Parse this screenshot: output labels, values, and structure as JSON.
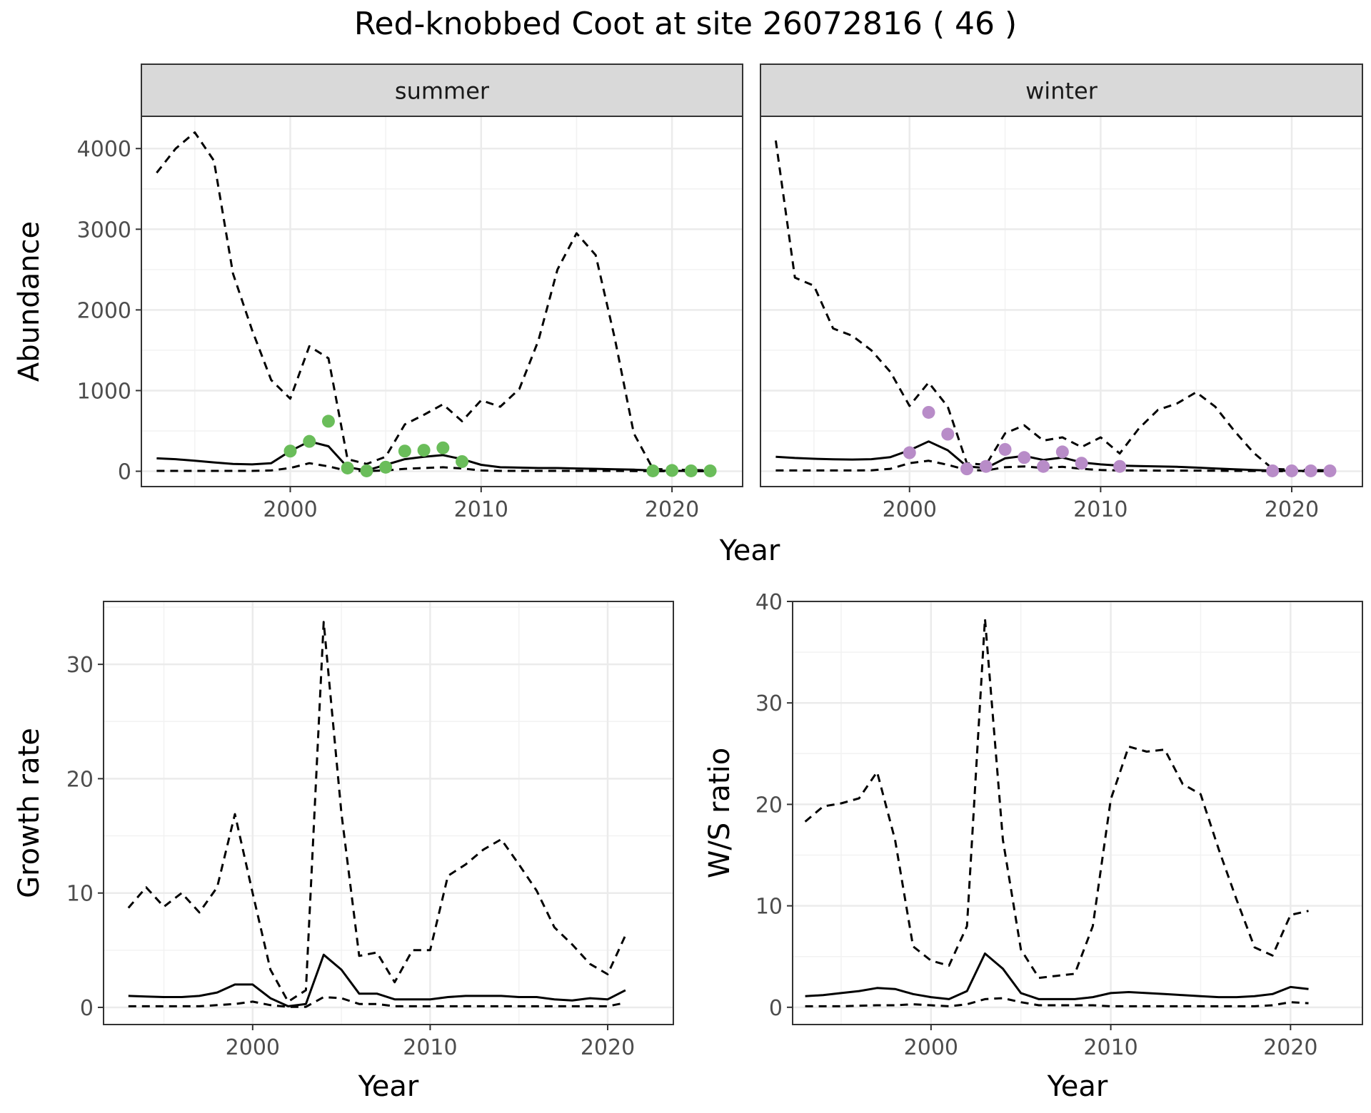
{
  "title": "Red-knobbed Coot at site 26072816 ( 46 )",
  "colors": {
    "summer_points": "#6abd5a",
    "winter_points": "#b88cc8",
    "line": "#000000",
    "strip": "#d9d9d9",
    "grid": "#ebebeb"
  },
  "chart_data": [
    {
      "type": "line",
      "panel": "summer",
      "xlabel": "Year",
      "ylabel": "Abundance",
      "xlim": [
        1992.2,
        2023.7
      ],
      "ylim": [
        -190,
        4400
      ],
      "x_ticks": [
        2000,
        2010,
        2020
      ],
      "y_ticks": [
        0,
        1000,
        2000,
        3000,
        4000
      ],
      "series": [
        {
          "style": "solid",
          "x": [
            1993,
            1994,
            1995,
            1996,
            1997,
            1998,
            1999,
            2000,
            2001,
            2002,
            2003,
            2004,
            2005,
            2006,
            2007,
            2008,
            2009,
            2010,
            2011,
            2012,
            2013,
            2014,
            2015,
            2016,
            2017,
            2018,
            2019,
            2020,
            2021,
            2022
          ],
          "y": [
            160,
            150,
            130,
            110,
            90,
            85,
            100,
            250,
            370,
            310,
            50,
            10,
            80,
            150,
            180,
            200,
            150,
            80,
            50,
            45,
            40,
            40,
            35,
            30,
            25,
            20,
            10,
            5,
            5,
            5
          ]
        },
        {
          "style": "dashed",
          "x": [
            1993,
            1994,
            1995,
            1996,
            1997,
            1998,
            1999,
            2000,
            2001,
            2002,
            2003,
            2004,
            2005,
            2006,
            2007,
            2008,
            2009,
            2010,
            2011,
            2012,
            2013,
            2014,
            2015,
            2016,
            2017,
            2018,
            2019,
            2020,
            2021,
            2022
          ],
          "y": [
            3700,
            4000,
            4200,
            3850,
            2450,
            1750,
            1130,
            900,
            1550,
            1400,
            150,
            90,
            180,
            580,
            700,
            830,
            620,
            880,
            800,
            1020,
            1620,
            2500,
            2950,
            2680,
            1650,
            470,
            30,
            20,
            15,
            10
          ]
        },
        {
          "style": "dashed",
          "x": [
            1993,
            1994,
            1995,
            1996,
            1997,
            1998,
            1999,
            2000,
            2001,
            2002,
            2003,
            2004,
            2005,
            2006,
            2007,
            2008,
            2009,
            2010,
            2011,
            2012,
            2013,
            2014,
            2015,
            2016,
            2017,
            2018,
            2019,
            2020,
            2021,
            2022
          ],
          "y": [
            5,
            5,
            5,
            5,
            5,
            5,
            10,
            40,
            100,
            60,
            5,
            2,
            10,
            30,
            40,
            50,
            35,
            10,
            5,
            5,
            5,
            5,
            5,
            5,
            5,
            3,
            2,
            1,
            1,
            1
          ]
        },
        {
          "style": "points",
          "x": [
            2000,
            2001,
            2002,
            2003,
            2004,
            2005,
            2006,
            2007,
            2008,
            2009,
            2019,
            2020,
            2021,
            2022
          ],
          "y": [
            250,
            370,
            620,
            40,
            5,
            50,
            250,
            260,
            290,
            120,
            5,
            10,
            5,
            5
          ]
        }
      ]
    },
    {
      "type": "line",
      "panel": "winter",
      "xlabel": "Year",
      "ylabel": "Abundance",
      "xlim": [
        1992.2,
        2023.7
      ],
      "ylim": [
        -190,
        4400
      ],
      "x_ticks": [
        2000,
        2010,
        2020
      ],
      "y_ticks": [
        0,
        1000,
        2000,
        3000,
        4000
      ],
      "series": [
        {
          "style": "solid",
          "x": [
            1993,
            1994,
            1995,
            1996,
            1997,
            1998,
            1999,
            2000,
            2001,
            2002,
            2003,
            2004,
            2005,
            2006,
            2007,
            2008,
            2009,
            2010,
            2011,
            2012,
            2013,
            2014,
            2015,
            2016,
            2017,
            2018,
            2019,
            2020,
            2021,
            2022
          ],
          "y": [
            180,
            165,
            155,
            148,
            145,
            150,
            175,
            260,
            370,
            260,
            60,
            40,
            160,
            190,
            140,
            170,
            110,
            85,
            70,
            65,
            60,
            55,
            45,
            35,
            25,
            15,
            8,
            5,
            5,
            5
          ]
        },
        {
          "style": "dashed",
          "x": [
            1993,
            1994,
            1995,
            1996,
            1997,
            1998,
            1999,
            2000,
            2001,
            2002,
            2003,
            2004,
            2005,
            2006,
            2007,
            2008,
            2009,
            2010,
            2011,
            2012,
            2013,
            2014,
            2015,
            2016,
            2017,
            2018,
            2019,
            2020,
            2021,
            2022
          ],
          "y": [
            4100,
            2400,
            2300,
            1770,
            1680,
            1500,
            1230,
            810,
            1100,
            800,
            100,
            80,
            470,
            570,
            380,
            420,
            300,
            420,
            220,
            530,
            760,
            840,
            980,
            800,
            500,
            230,
            30,
            20,
            15,
            10
          ]
        },
        {
          "style": "dashed",
          "x": [
            1993,
            1994,
            1995,
            1996,
            1997,
            1998,
            1999,
            2000,
            2001,
            2002,
            2003,
            2004,
            2005,
            2006,
            2007,
            2008,
            2009,
            2010,
            2011,
            2012,
            2013,
            2014,
            2015,
            2016,
            2017,
            2018,
            2019,
            2020,
            2021,
            2022
          ],
          "y": [
            10,
            10,
            10,
            10,
            10,
            12,
            30,
            100,
            130,
            80,
            15,
            10,
            50,
            60,
            40,
            55,
            30,
            15,
            10,
            10,
            8,
            8,
            8,
            6,
            5,
            4,
            2,
            1,
            1,
            1
          ]
        },
        {
          "style": "points",
          "x": [
            2000,
            2001,
            2002,
            2003,
            2004,
            2005,
            2006,
            2007,
            2008,
            2009,
            2011,
            2019,
            2020,
            2021,
            2022
          ],
          "y": [
            230,
            730,
            460,
            30,
            60,
            270,
            170,
            60,
            240,
            100,
            60,
            5,
            5,
            5,
            5
          ]
        }
      ]
    },
    {
      "type": "line",
      "panel": "growth",
      "xlabel": "Year",
      "ylabel": "Growth rate",
      "xlim": [
        1991.6,
        2023.7
      ],
      "ylim": [
        -1.5,
        35.5
      ],
      "x_ticks": [
        2000,
        2010,
        2020
      ],
      "y_ticks": [
        0,
        10,
        20,
        30
      ],
      "series": [
        {
          "style": "solid",
          "x": [
            1993,
            1994,
            1995,
            1996,
            1997,
            1998,
            1999,
            2000,
            2001,
            2002,
            2003,
            2004,
            2005,
            2006,
            2007,
            2008,
            2009,
            2010,
            2011,
            2012,
            2013,
            2014,
            2015,
            2016,
            2017,
            2018,
            2019,
            2020,
            2021
          ],
          "y": [
            1.0,
            0.95,
            0.9,
            0.9,
            1.0,
            1.3,
            2.0,
            2.0,
            0.8,
            0.1,
            0.3,
            4.6,
            3.3,
            1.2,
            1.2,
            0.7,
            0.7,
            0.7,
            0.9,
            1.0,
            1.0,
            1.0,
            0.9,
            0.9,
            0.7,
            0.6,
            0.8,
            0.7,
            1.5
          ]
        },
        {
          "style": "dashed",
          "x": [
            1993,
            1994,
            1995,
            1996,
            1997,
            1998,
            1999,
            2000,
            2001,
            2002,
            2003,
            2004,
            2005,
            2006,
            2007,
            2008,
            2009,
            2010,
            2011,
            2012,
            2013,
            2014,
            2015,
            2016,
            2017,
            2018,
            2019,
            2020,
            2021
          ],
          "y": [
            8.7,
            10.5,
            8.8,
            10.0,
            8.3,
            10.5,
            16.9,
            10.0,
            3.3,
            0.5,
            1.5,
            33.7,
            17.0,
            4.5,
            4.8,
            2.2,
            5.0,
            5.0,
            11.5,
            12.5,
            13.8,
            14.7,
            12.5,
            10.2,
            7.0,
            5.5,
            3.8,
            2.9,
            6.3
          ]
        },
        {
          "style": "dashed",
          "x": [
            1993,
            1994,
            1995,
            1996,
            1997,
            1998,
            1999,
            2000,
            2001,
            2002,
            2003,
            2004,
            2005,
            2006,
            2007,
            2008,
            2009,
            2010,
            2011,
            2012,
            2013,
            2014,
            2015,
            2016,
            2017,
            2018,
            2019,
            2020,
            2021
          ],
          "y": [
            0.1,
            0.1,
            0.1,
            0.1,
            0.1,
            0.2,
            0.3,
            0.5,
            0.2,
            0.05,
            0.05,
            0.9,
            0.8,
            0.3,
            0.3,
            0.1,
            0.1,
            0.1,
            0.1,
            0.1,
            0.1,
            0.1,
            0.1,
            0.1,
            0.1,
            0.1,
            0.1,
            0.1,
            0.4
          ]
        }
      ]
    },
    {
      "type": "line",
      "panel": "ratio",
      "xlabel": "Year",
      "ylabel": "W/S ratio",
      "xlim": [
        1992.3,
        2024.0
      ],
      "ylim": [
        -1.7,
        40
      ],
      "x_ticks": [
        2000,
        2010,
        2020
      ],
      "y_ticks": [
        0,
        10,
        20,
        30,
        40
      ],
      "series": [
        {
          "style": "solid",
          "x": [
            1993,
            1994,
            1995,
            1996,
            1997,
            1998,
            1999,
            2000,
            2001,
            2002,
            2003,
            2004,
            2005,
            2006,
            2007,
            2008,
            2009,
            2010,
            2011,
            2012,
            2013,
            2014,
            2015,
            2016,
            2017,
            2018,
            2019,
            2020,
            2021
          ],
          "y": [
            1.1,
            1.2,
            1.4,
            1.6,
            1.9,
            1.8,
            1.3,
            1.0,
            0.8,
            1.6,
            5.3,
            3.8,
            1.4,
            0.8,
            0.8,
            0.8,
            1.0,
            1.4,
            1.5,
            1.4,
            1.3,
            1.2,
            1.1,
            1.0,
            1.0,
            1.1,
            1.3,
            2.0,
            1.8
          ]
        },
        {
          "style": "dashed",
          "x": [
            1993,
            1994,
            1995,
            1996,
            1997,
            1998,
            1999,
            2000,
            2001,
            2002,
            2003,
            2004,
            2005,
            2006,
            2007,
            2008,
            2009,
            2010,
            2011,
            2012,
            2013,
            2014,
            2015,
            2016,
            2017,
            2018,
            2019,
            2020,
            2021
          ],
          "y": [
            18.3,
            19.8,
            20.1,
            20.6,
            23.2,
            16.5,
            6.0,
            4.6,
            4.1,
            8.0,
            38.3,
            16.5,
            5.7,
            2.9,
            3.1,
            3.3,
            8.0,
            20.5,
            25.7,
            25.2,
            25.4,
            22.0,
            21.0,
            15.6,
            10.6,
            5.9,
            5.1,
            9.1,
            9.5
          ]
        },
        {
          "style": "dashed",
          "x": [
            1993,
            1994,
            1995,
            1996,
            1997,
            1998,
            1999,
            2000,
            2001,
            2002,
            2003,
            2004,
            2005,
            2006,
            2007,
            2008,
            2009,
            2010,
            2011,
            2012,
            2013,
            2014,
            2015,
            2016,
            2017,
            2018,
            2019,
            2020,
            2021
          ],
          "y": [
            0.1,
            0.1,
            0.1,
            0.15,
            0.2,
            0.2,
            0.3,
            0.2,
            0.1,
            0.3,
            0.8,
            0.9,
            0.5,
            0.2,
            0.2,
            0.2,
            0.2,
            0.1,
            0.1,
            0.1,
            0.1,
            0.1,
            0.1,
            0.1,
            0.1,
            0.1,
            0.2,
            0.5,
            0.4
          ]
        }
      ]
    }
  ]
}
